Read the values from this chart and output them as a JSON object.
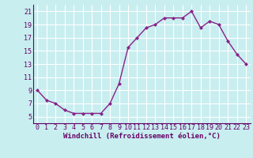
{
  "x": [
    0,
    1,
    2,
    3,
    4,
    5,
    6,
    7,
    8,
    9,
    10,
    11,
    12,
    13,
    14,
    15,
    16,
    17,
    18,
    19,
    20,
    21,
    22,
    23
  ],
  "y": [
    9,
    7.5,
    7.0,
    6.0,
    5.5,
    5.5,
    5.5,
    5.5,
    7.0,
    10.0,
    15.5,
    17.0,
    18.5,
    19.0,
    20.0,
    20.0,
    20.0,
    21.0,
    18.5,
    19.5,
    19.0,
    16.5,
    14.5,
    13.0
  ],
  "line_color": "#882288",
  "marker": "D",
  "marker_size": 2.0,
  "bg_color": "#C8EEF0",
  "grid_color": "#FFFFFF",
  "xlabel": "Windchill (Refroidissement éolien,°C)",
  "xlabel_color": "#660066",
  "tick_color": "#660066",
  "spine_color": "#660066",
  "xlim": [
    -0.5,
    23.5
  ],
  "ylim": [
    4.0,
    22.0
  ],
  "yticks": [
    5,
    7,
    9,
    11,
    13,
    15,
    17,
    19,
    21
  ],
  "xticks": [
    0,
    1,
    2,
    3,
    4,
    5,
    6,
    7,
    8,
    9,
    10,
    11,
    12,
    13,
    14,
    15,
    16,
    17,
    18,
    19,
    20,
    21,
    22,
    23
  ],
  "xtick_labels": [
    "0",
    "1",
    "2",
    "3",
    "4",
    "5",
    "6",
    "7",
    "8",
    "9",
    "10",
    "11",
    "12",
    "13",
    "14",
    "15",
    "16",
    "17",
    "18",
    "19",
    "20",
    "21",
    "22",
    "23"
  ],
  "ytick_labels": [
    "5",
    "7",
    "9",
    "11",
    "13",
    "15",
    "17",
    "19",
    "21"
  ],
  "font_size": 6,
  "label_font_size": 6.5,
  "linewidth": 1.0
}
